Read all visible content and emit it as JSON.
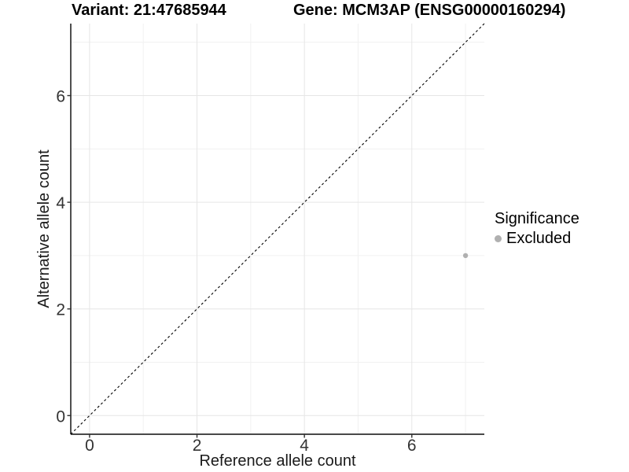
{
  "chart_data": {
    "type": "scatter",
    "title_left": "Variant: 21:47685944",
    "title_right": "Gene: MCM3AP (ENSG00000160294)",
    "xlabel": "Reference allele count",
    "ylabel": "Alternative allele count",
    "xlim": [
      -0.35,
      7.35
    ],
    "ylim": [
      -0.35,
      7.35
    ],
    "x_major_ticks": [
      0,
      2,
      4,
      6
    ],
    "y_major_ticks": [
      0,
      2,
      4,
      6
    ],
    "x_tick_labels": [
      "0",
      "2",
      "4",
      "6"
    ],
    "y_tick_labels": [
      "0",
      "2",
      "4",
      "6"
    ],
    "x_minor_gridlines": [
      1,
      3,
      5,
      7
    ],
    "y_minor_gridlines": [
      1,
      3,
      5,
      7
    ],
    "grid": "major+minor",
    "points": [
      {
        "x": 7,
        "y": 3,
        "significance": "Excluded"
      }
    ],
    "reference_line": {
      "type": "identity",
      "style": "dashed",
      "from": [
        -0.35,
        -0.35
      ],
      "to": [
        7.35,
        7.35
      ]
    },
    "legend": {
      "title": "Significance",
      "position": "right",
      "entries": [
        {
          "label": "Excluded",
          "color": "#b0b0b0"
        }
      ]
    },
    "colors": {
      "point": "#b0b0b0",
      "grid_major": "#e6e6e6",
      "grid_minor": "#f1f1f1",
      "axis_line": "#2f2f2f",
      "reference_line": "#000000",
      "background": "#ffffff"
    }
  }
}
